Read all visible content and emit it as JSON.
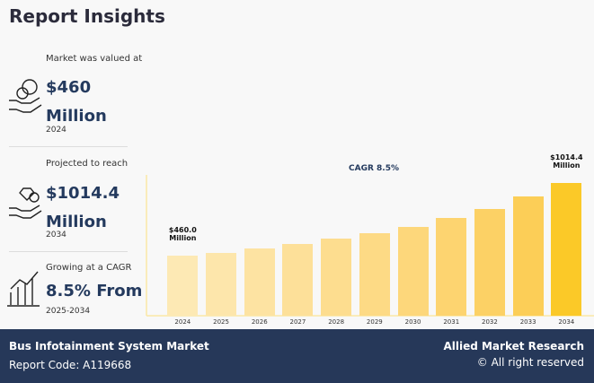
{
  "title": "Report Insights",
  "stats": [
    {
      "label": "Market was valued at",
      "value": "$460 Million",
      "note": "2024"
    },
    {
      "label": "Projected to reach",
      "value": "$1014.4 Million",
      "note": "2034"
    },
    {
      "label": "Growing at a CAGR",
      "value": "8.5% From",
      "note": "2025-2034"
    }
  ],
  "chart_data": {
    "type": "bar",
    "annotation": "CAGR 8.5%",
    "categories": [
      "2024",
      "2025",
      "2026",
      "2027",
      "2028",
      "2029",
      "2030",
      "2031",
      "2032",
      "2033",
      "2034"
    ],
    "values": [
      460,
      479,
      513,
      548,
      589,
      630,
      678,
      746,
      815,
      911,
      1014.4
    ],
    "value_labels": [
      "$460.0 Million",
      null,
      null,
      null,
      null,
      null,
      null,
      null,
      null,
      null,
      "$1014.4 Million"
    ],
    "colors": [
      "#fde9b4",
      "#fde6ab",
      "#fde3a2",
      "#fde099",
      "#fddd8f",
      "#fdda85",
      "#fdd77b",
      "#fdd470",
      "#fcd165",
      "#fcce57",
      "#fbc928"
    ]
  },
  "footer": {
    "market": "Bus Infotainment System Market",
    "code": "Report Code: A119668",
    "brand": "Allied Market Research",
    "rights": "© All right reserved"
  }
}
